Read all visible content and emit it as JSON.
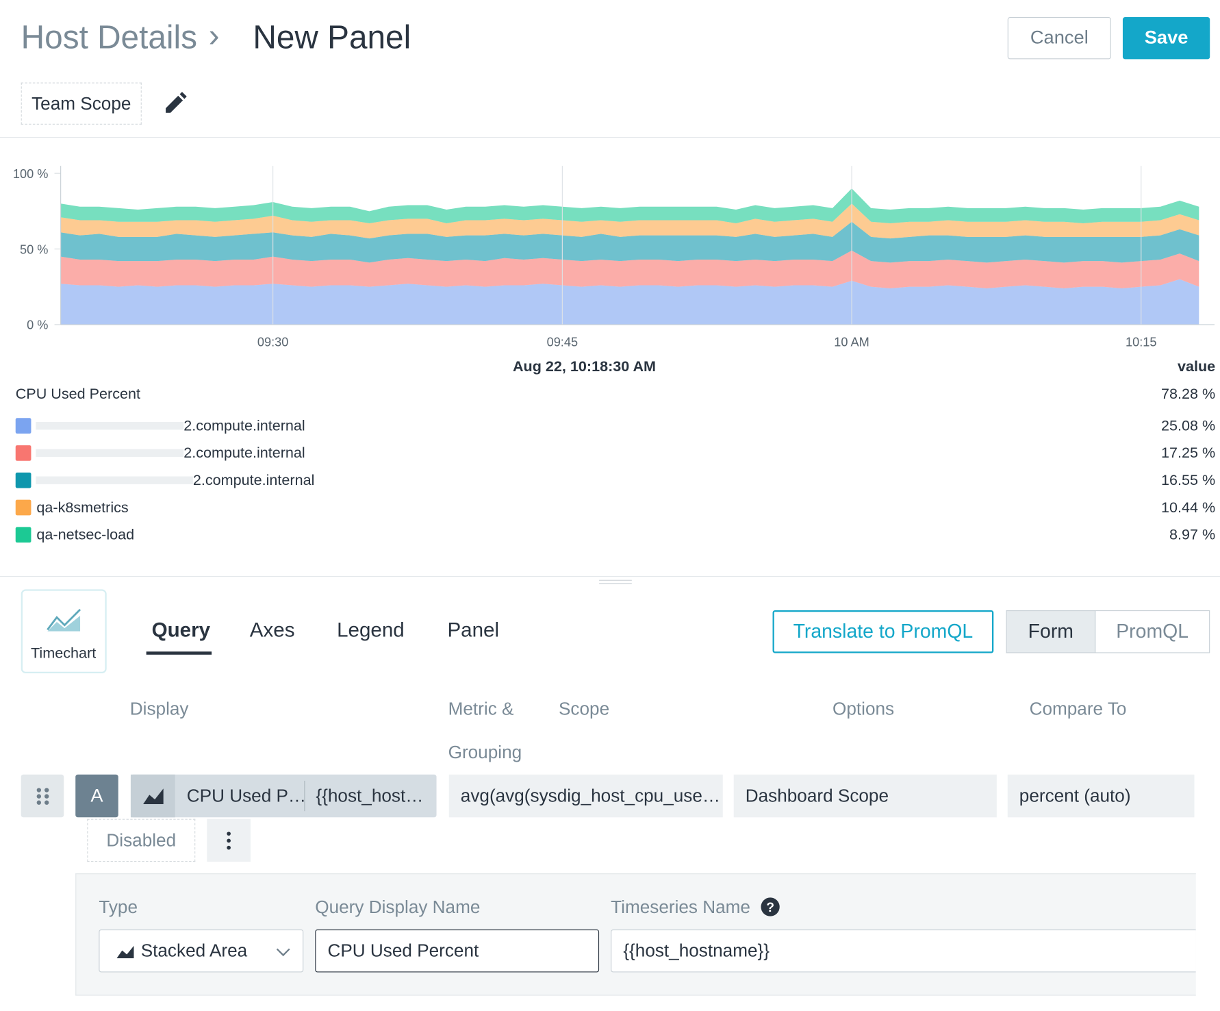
{
  "header": {
    "breadcrumb": "Host Details",
    "separator": "›",
    "title": "New Panel",
    "cancel": "Cancel",
    "save": "Save",
    "scope": "Team Scope"
  },
  "chart_data": {
    "type": "stacked-area",
    "x": [
      "09:19",
      "09:20",
      "09:21",
      "09:22",
      "09:23",
      "09:24",
      "09:25",
      "09:26",
      "09:27",
      "09:28",
      "09:29",
      "09:30",
      "09:31",
      "09:32",
      "09:33",
      "09:34",
      "09:35",
      "09:36",
      "09:37",
      "09:38",
      "09:39",
      "09:40",
      "09:41",
      "09:42",
      "09:43",
      "09:44",
      "09:45",
      "09:46",
      "09:47",
      "09:48",
      "09:49",
      "09:50",
      "09:51",
      "09:52",
      "09:53",
      "09:54",
      "09:55",
      "09:56",
      "09:57",
      "09:58",
      "09:59",
      "10:00",
      "10:01",
      "10:02",
      "10:03",
      "10:04",
      "10:05",
      "10:06",
      "10:07",
      "10:08",
      "10:09",
      "10:10",
      "10:11",
      "10:12",
      "10:13",
      "10:14",
      "10:15",
      "10:16",
      "10:17",
      "10:18"
    ],
    "xticks": [
      "09:30",
      "09:45",
      {
        "value": "10:00",
        "label": "10 AM"
      },
      "10:15"
    ],
    "ylim": [
      0,
      105
    ],
    "yticks": [
      {
        "value": 0,
        "label": "0 %"
      },
      {
        "value": 50,
        "label": "50 %"
      },
      {
        "value": 100,
        "label": "100 %"
      }
    ],
    "grid": true,
    "legend_time": "Aug 22, 10:18:30 AM",
    "legend_value_header": "value",
    "legend_title": "CPU Used Percent",
    "total": 78.28,
    "total_label": "78.28 %",
    "series": [
      {
        "name": "2.compute.internal",
        "color": "#7ba4f0",
        "last_value": 25.08,
        "last_value_label": "25.08 %",
        "values": [
          27,
          26,
          26,
          25,
          26,
          25,
          26,
          26,
          25,
          26,
          26,
          27,
          26,
          25,
          26,
          26,
          25,
          26,
          27,
          26,
          25,
          26,
          25,
          26,
          26,
          27,
          26,
          25,
          26,
          25,
          26,
          26,
          25,
          26,
          26,
          25,
          26,
          25,
          26,
          26,
          25,
          29,
          25,
          24,
          25,
          25,
          26,
          25,
          24,
          25,
          26,
          25,
          24,
          25,
          25,
          24,
          25,
          26,
          30,
          25
        ]
      },
      {
        "name": "2.compute.internal",
        "color": "#f87670",
        "last_value": 17.25,
        "last_value_label": "17.25 %",
        "values": [
          18,
          17,
          17,
          17,
          16,
          17,
          17,
          17,
          17,
          17,
          17,
          18,
          17,
          17,
          17,
          17,
          16,
          17,
          17,
          17,
          17,
          17,
          17,
          18,
          17,
          17,
          17,
          17,
          17,
          17,
          17,
          17,
          17,
          17,
          17,
          17,
          17,
          17,
          17,
          17,
          17,
          20,
          17,
          17,
          17,
          17,
          17,
          17,
          17,
          17,
          17,
          17,
          17,
          17,
          17,
          17,
          17,
          17,
          17,
          17
        ]
      },
      {
        "name": "2.compute.internal",
        "color": "#0f97ad",
        "last_value": 16.55,
        "last_value_label": "16.55 %",
        "values": [
          16,
          16,
          17,
          16,
          16,
          16,
          17,
          16,
          16,
          16,
          17,
          16,
          16,
          16,
          17,
          16,
          16,
          16,
          16,
          17,
          16,
          16,
          17,
          16,
          16,
          16,
          16,
          16,
          17,
          16,
          16,
          16,
          17,
          16,
          16,
          16,
          17,
          16,
          16,
          17,
          16,
          19,
          16,
          16,
          16,
          17,
          16,
          16,
          17,
          16,
          16,
          16,
          17,
          16,
          16,
          17,
          16,
          16,
          16,
          17
        ]
      },
      {
        "name": "qa-k8smetrics",
        "color": "#fca84a",
        "last_value": 10.44,
        "last_value_label": "10.44 %",
        "values": [
          10,
          10,
          9,
          10,
          10,
          10,
          9,
          10,
          10,
          10,
          10,
          11,
          10,
          10,
          9,
          10,
          10,
          10,
          10,
          10,
          9,
          10,
          10,
          10,
          10,
          10,
          10,
          10,
          9,
          10,
          10,
          10,
          10,
          10,
          10,
          9,
          10,
          10,
          10,
          10,
          10,
          12,
          10,
          10,
          10,
          9,
          10,
          10,
          10,
          10,
          10,
          10,
          10,
          9,
          10,
          10,
          10,
          10,
          10,
          10
        ]
      },
      {
        "name": "qa-netsec-load",
        "color": "#1cc994",
        "last_value": 8.97,
        "last_value_label": "8.97 %",
        "values": [
          9,
          9,
          9,
          9,
          8,
          9,
          9,
          9,
          9,
          9,
          9,
          9,
          9,
          9,
          9,
          9,
          8,
          9,
          9,
          9,
          9,
          9,
          9,
          9,
          9,
          9,
          9,
          9,
          9,
          9,
          9,
          9,
          9,
          9,
          9,
          9,
          9,
          9,
          9,
          9,
          9,
          10,
          9,
          9,
          9,
          9,
          9,
          9,
          9,
          9,
          9,
          9,
          9,
          9,
          9,
          9,
          9,
          9,
          9,
          9
        ]
      }
    ]
  },
  "editor": {
    "chart_type": "Timechart",
    "tabs": [
      "Query",
      "Axes",
      "Legend",
      "Panel"
    ],
    "translate": "Translate to PromQL",
    "modes": [
      "Form",
      "PromQL"
    ],
    "columns": [
      "Display",
      "Metric & Grouping",
      "Scope",
      "Options",
      "Compare To"
    ],
    "query": {
      "letter": "A",
      "display_name": "CPU Used P…",
      "timeseries": "{{host_host…",
      "metric": "avg(avg(sysdig_host_cpu_use…",
      "scope": "Dashboard Scope",
      "compare": "percent (auto)",
      "status": "Disabled"
    },
    "form": {
      "type_label": "Type",
      "type_value": "Stacked Area",
      "name_label": "Query Display Name",
      "name_value": "CPU Used Percent",
      "ts_label": "Timeseries Name",
      "ts_value": "{{host_hostname}}"
    }
  }
}
